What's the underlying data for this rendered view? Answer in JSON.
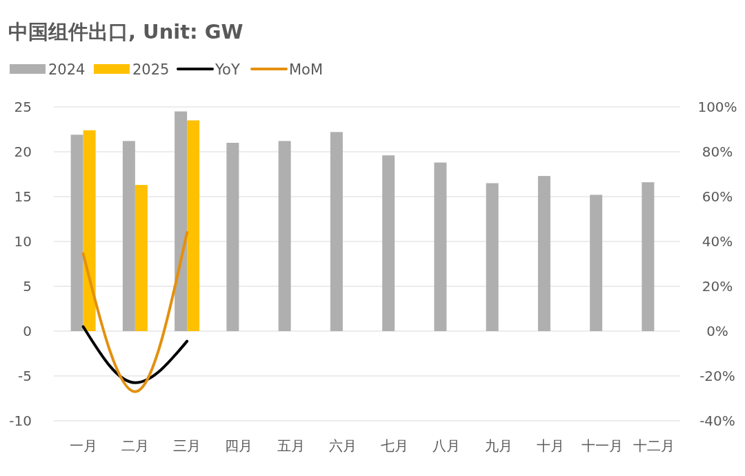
{
  "chart_data": {
    "type": "bar",
    "title": "中国组件出口, Unit: GW",
    "categories": [
      "一月",
      "二月",
      "三月",
      "四月",
      "五月",
      "六月",
      "七月",
      "八月",
      "九月",
      "十月",
      "十一月",
      "十二月"
    ],
    "series": [
      {
        "name": "2024",
        "color": "#afafaf",
        "values": [
          21.9,
          21.2,
          24.5,
          21.0,
          21.2,
          22.2,
          19.6,
          18.8,
          16.5,
          17.3,
          15.2,
          16.6
        ]
      },
      {
        "name": "2025",
        "color": "#ffc000",
        "values": [
          22.4,
          16.3,
          23.5,
          null,
          null,
          null,
          null,
          null,
          null,
          null,
          null,
          null
        ]
      },
      {
        "name": "YoY",
        "type": "line",
        "axis": "y2",
        "color": "#000000",
        "values": [
          2,
          -23,
          -4.5,
          null,
          null,
          null,
          null,
          null,
          null,
          null,
          null,
          null
        ]
      },
      {
        "name": "MoM",
        "type": "line",
        "axis": "y2",
        "color": "#e3900f",
        "values": [
          34.5,
          -27,
          44,
          null,
          null,
          null,
          null,
          null,
          null,
          null,
          null,
          null
        ]
      }
    ],
    "ylim": [
      -10,
      25
    ],
    "yticks": [
      -10,
      -5,
      0,
      5,
      10,
      15,
      20,
      25
    ],
    "y2lim": [
      -40,
      100
    ],
    "y2ticks": [
      {
        "value": -40,
        "label": "-40%"
      },
      {
        "value": -20,
        "label": "-20%"
      },
      {
        "value": 0,
        "label": "0%"
      },
      {
        "value": 20,
        "label": "20%"
      },
      {
        "value": 40,
        "label": "40%"
      },
      {
        "value": 60,
        "label": "60%"
      },
      {
        "value": 80,
        "label": "80%"
      },
      {
        "value": 100,
        "label": "100%"
      }
    ],
    "grid": "y",
    "legend": "top left",
    "line_style": "solid"
  }
}
